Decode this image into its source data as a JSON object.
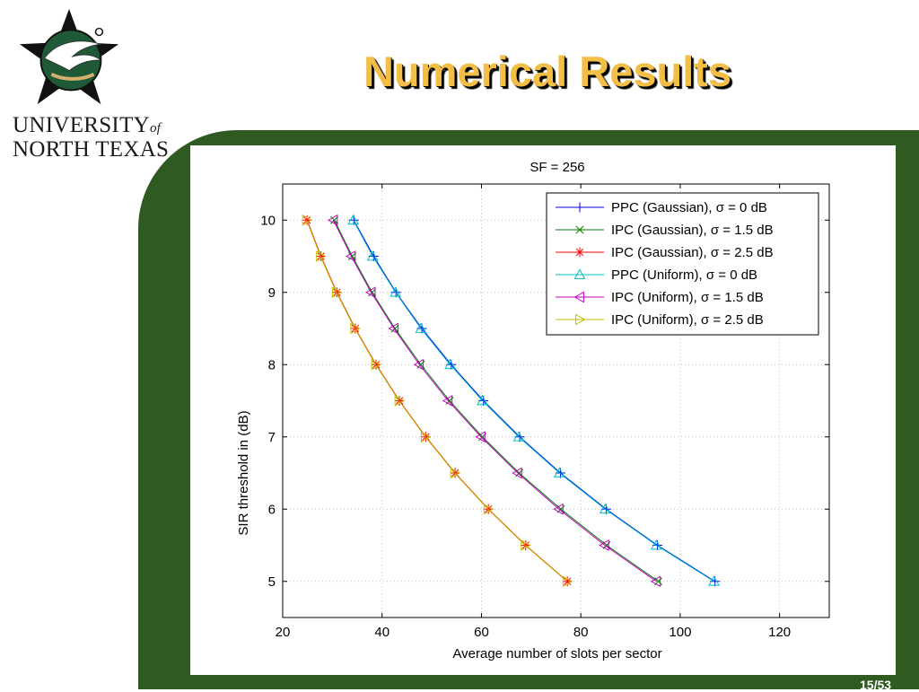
{
  "slide": {
    "title": "Numerical Results",
    "university_line1": "UNIVERSITY",
    "university_of": "of",
    "university_line2": "NORTH TEXAS",
    "page_number": "15/53",
    "background_color": "#2f5a22",
    "title_color": "#f3be46"
  },
  "chart_data": {
    "type": "line",
    "title": "SF = 256",
    "xlabel": "Average number of slots per sector",
    "ylabel": "SIR threshold in (dB)",
    "xlim": [
      20,
      130
    ],
    "ylim": [
      4.5,
      10.5
    ],
    "xticks": [
      20,
      40,
      60,
      80,
      100,
      120
    ],
    "yticks": [
      5,
      6,
      7,
      8,
      9,
      10
    ],
    "grid": true,
    "legend_position": "top-right",
    "series": [
      {
        "name": "PPC (Gaussian), σ = 0 dB",
        "color": "#0000ff",
        "marker": "plus",
        "x": [
          34.3,
          38.3,
          42.8,
          48.0,
          53.9,
          60.4,
          67.7,
          75.9,
          85.1,
          95.4,
          107.0
        ],
        "y": [
          10,
          9.5,
          9,
          8.5,
          8,
          7.5,
          7,
          6.5,
          6,
          5.5,
          5
        ]
      },
      {
        "name": "IPC (Gaussian), σ = 1.5 dB",
        "color": "#008000",
        "marker": "x",
        "x": [
          30.4,
          34.0,
          38.0,
          42.6,
          47.8,
          53.6,
          60.2,
          67.6,
          76.0,
          85.2,
          95.6
        ],
        "y": [
          10,
          9.5,
          9,
          8.5,
          8,
          7.5,
          7,
          6.5,
          6,
          5.5,
          5
        ]
      },
      {
        "name": "IPC (Gaussian), σ = 2.5 dB",
        "color": "#ff0000",
        "marker": "star",
        "x": [
          24.9,
          27.7,
          30.9,
          34.6,
          38.8,
          43.5,
          48.8,
          54.7,
          61.4,
          68.9,
          77.3
        ],
        "y": [
          10,
          9.5,
          9,
          8.5,
          8,
          7.5,
          7,
          6.5,
          6,
          5.5,
          5
        ]
      },
      {
        "name": "PPC (Uniform), σ = 0 dB",
        "color": "#00bfbf",
        "marker": "triangle-up",
        "x": [
          34.2,
          38.1,
          42.7,
          47.8,
          53.7,
          60.2,
          67.5,
          75.7,
          84.9,
          95.2,
          106.8
        ],
        "y": [
          10,
          9.5,
          9,
          8.5,
          8,
          7.5,
          7,
          6.5,
          6,
          5.5,
          5
        ]
      },
      {
        "name": "IPC (Uniform), σ = 1.5 dB",
        "color": "#bf00bf",
        "marker": "triangle-left",
        "x": [
          30.2,
          33.8,
          37.8,
          42.4,
          47.5,
          53.3,
          59.9,
          67.3,
          75.6,
          84.8,
          95.2
        ],
        "y": [
          10,
          9.5,
          9,
          8.5,
          8,
          7.5,
          7,
          6.5,
          6,
          5.5,
          5
        ]
      },
      {
        "name": "IPC (Uniform), σ = 2.5 dB",
        "color": "#bfbf00",
        "marker": "triangle-right",
        "x": [
          24.8,
          27.6,
          30.8,
          34.5,
          38.7,
          43.4,
          48.7,
          54.6,
          61.3,
          68.8,
          77.2
        ],
        "y": [
          10,
          9.5,
          9,
          8.5,
          8,
          7.5,
          7,
          6.5,
          6,
          5.5,
          5
        ]
      }
    ]
  }
}
